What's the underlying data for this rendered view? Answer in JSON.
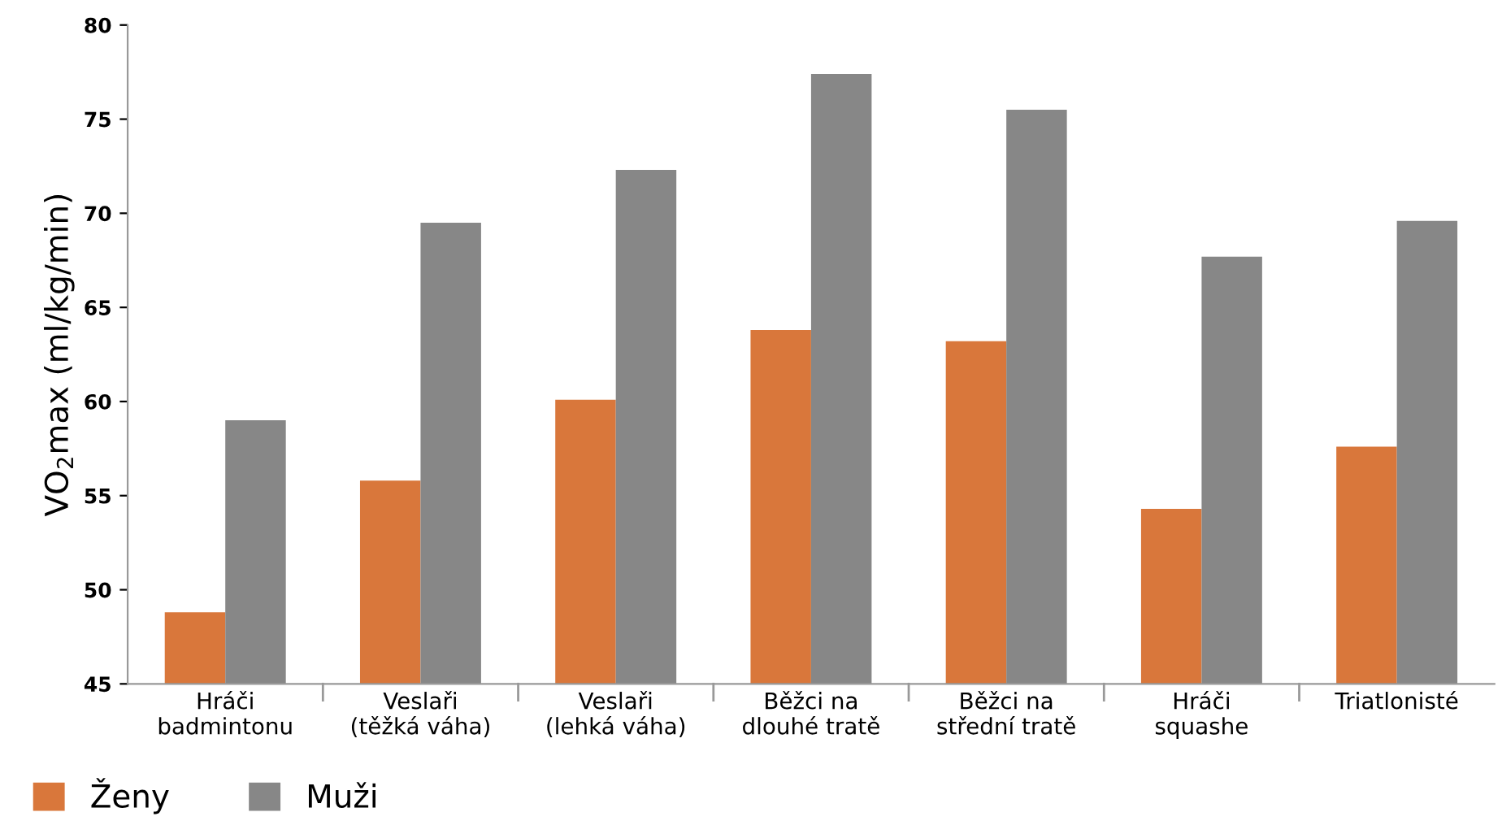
{
  "chart_data": {
    "type": "bar",
    "ylabel": "VO$_{2}$max (ml/kg/min)",
    "categories": [
      "Hráči\nbadmintonu",
      "Veslaři\n(těžká váha)",
      "Veslaři\n(lehká váha)",
      "Běžci na\ndlouhé tratě",
      "Běžci na\nstřední tratě",
      "Hráči\nsquashe",
      "Triatlonisté"
    ],
    "series": [
      {
        "name": "Ženy",
        "color": "#d9773b",
        "values": [
          48.8,
          55.8,
          60.1,
          63.8,
          63.2,
          54.3,
          57.6
        ]
      },
      {
        "name": "Muži",
        "color": "#878787",
        "values": [
          59.0,
          69.5,
          72.3,
          77.4,
          75.5,
          67.7,
          69.6
        ]
      }
    ],
    "ylim": [
      45,
      80
    ],
    "yticks": [
      45,
      50,
      55,
      60,
      65,
      70,
      75,
      80
    ],
    "grid": false,
    "legend": "bottom left"
  }
}
